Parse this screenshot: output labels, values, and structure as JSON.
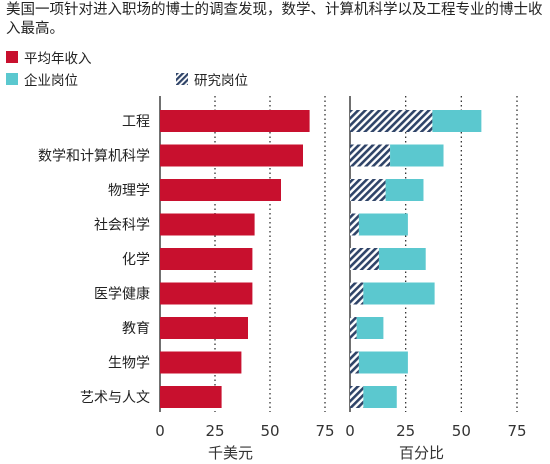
{
  "title": "美国一项针对进入职场的博士的调查发现，数学、计算机科学以及工程专业的博士收入最高。",
  "legend": {
    "salary": "平均年收入",
    "industry": "企业岗位",
    "research": "研究岗位"
  },
  "colors": {
    "salary": "#c8102e",
    "industry": "#5bc8cf",
    "research": "#2f4468",
    "grid": "#333333"
  },
  "chart_data": [
    {
      "type": "bar",
      "orientation": "horizontal",
      "categories": [
        "工程",
        "数学和计算机科学",
        "物理学",
        "社会科学",
        "化学",
        "医学健康",
        "教育",
        "生物学",
        "艺术与人文"
      ],
      "series": [
        {
          "name": "平均年收入",
          "values": [
            68,
            65,
            55,
            43,
            42,
            42,
            40,
            37,
            28
          ]
        }
      ],
      "xlabel": "千美元",
      "xlim": [
        0,
        75
      ],
      "xticks": [
        0,
        25,
        50,
        75
      ],
      "grid": "dotted vertical"
    },
    {
      "type": "bar",
      "orientation": "horizontal",
      "stacked": true,
      "categories": [
        "工程",
        "数学和计算机科学",
        "物理学",
        "社会科学",
        "化学",
        "医学健康",
        "教育",
        "生物学",
        "艺术与人文"
      ],
      "series": [
        {
          "name": "研究岗位",
          "values": [
            37,
            18,
            16,
            4,
            13,
            6,
            3,
            4,
            6
          ]
        },
        {
          "name": "企业岗位",
          "values": [
            22,
            24,
            17,
            22,
            21,
            32,
            12,
            22,
            15
          ]
        }
      ],
      "xlabel": "百分比",
      "xlim": [
        0,
        75
      ],
      "xticks": [
        0,
        25,
        50,
        75
      ],
      "grid": "dotted vertical"
    }
  ]
}
